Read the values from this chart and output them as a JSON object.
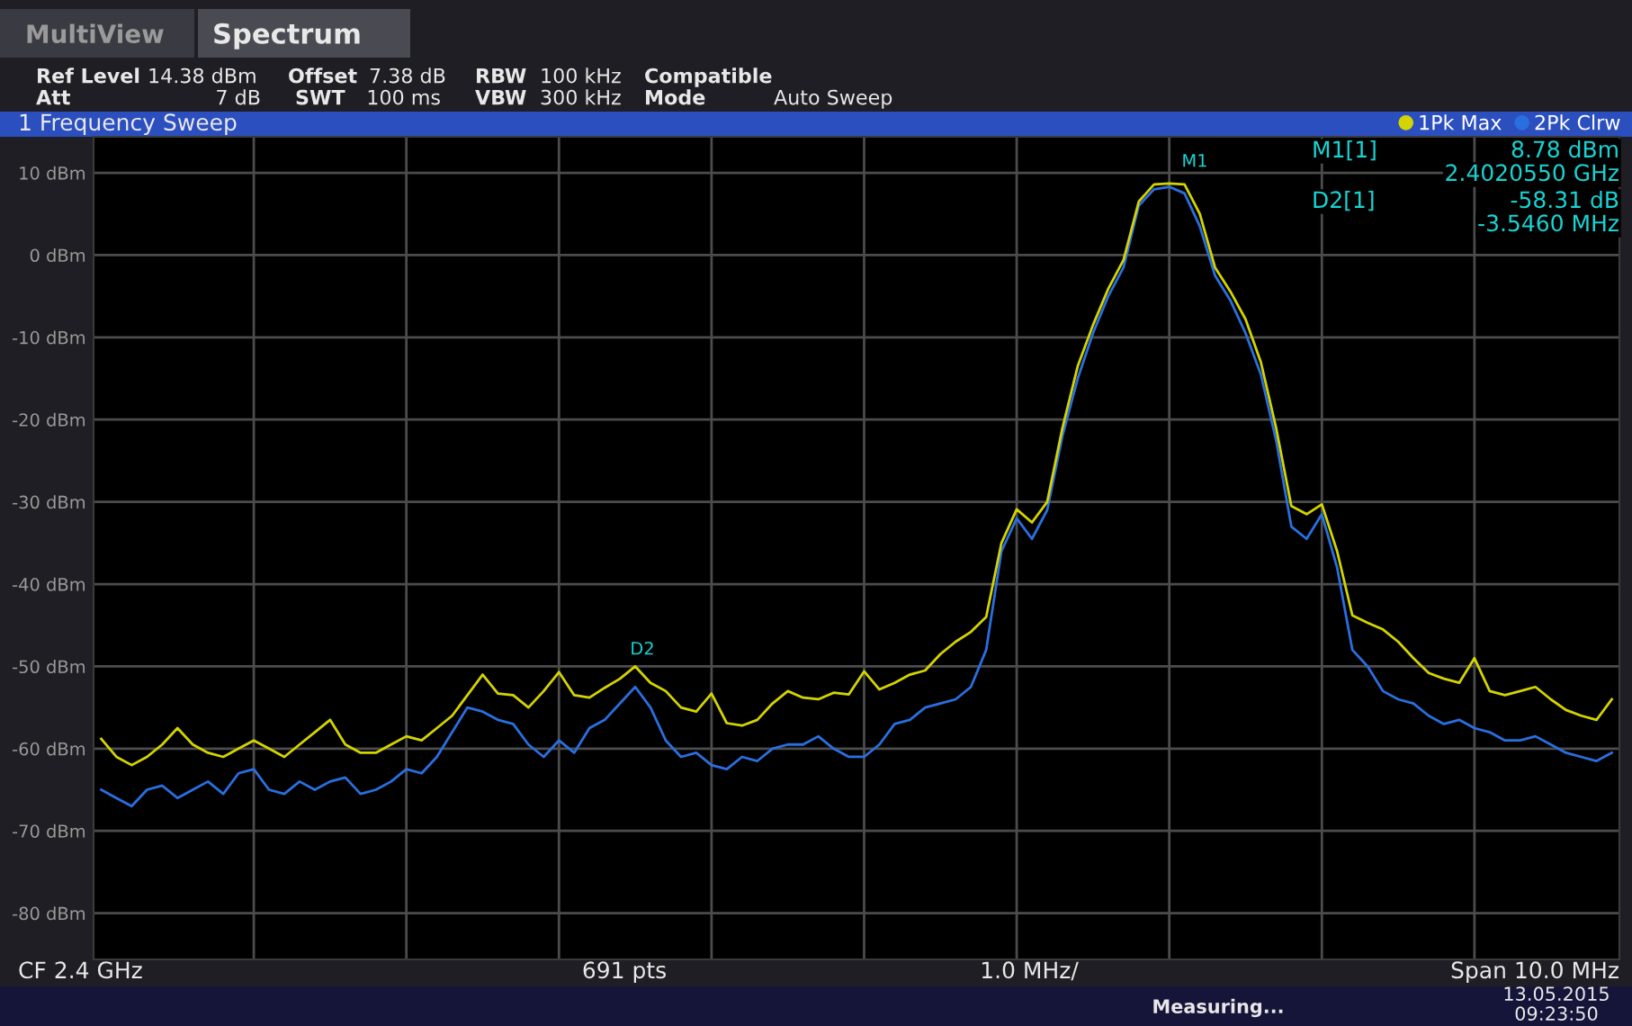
{
  "chart_data": {
    "type": "line",
    "categories": [
      null,
      null,
      null,
      null,
      null,
      null,
      null,
      null,
      null,
      null,
      null,
      null,
      null,
      null,
      null,
      null,
      null,
      null,
      null,
      null,
      null,
      null,
      null,
      null,
      null,
      null,
      null,
      null,
      null,
      null,
      null,
      null,
      null,
      null,
      null,
      null,
      null,
      null,
      null,
      null,
      null,
      null,
      null,
      null,
      null,
      null,
      null,
      null,
      null,
      null,
      null,
      null,
      null,
      null,
      null,
      null,
      null,
      null,
      null,
      null,
      null,
      null,
      null,
      null,
      null,
      null,
      null,
      null,
      null,
      null,
      null,
      null,
      null,
      null,
      null,
      null,
      null,
      null,
      null,
      null,
      null,
      null,
      null,
      null,
      null,
      null,
      null,
      null,
      null,
      null,
      null,
      null,
      null,
      null,
      null,
      null,
      null,
      null,
      null,
      null
    ],
    "series": [
      {
        "name": "1Pk Max",
        "color": "#d4d400",
        "values": [
          -58.8,
          -61,
          -62,
          -61,
          -59.5,
          -57.5,
          -59.5,
          -60.5,
          -61,
          -60,
          -59,
          -60,
          -61,
          -59.5,
          -58,
          -56.5,
          -59.5,
          -60.5,
          -60.5,
          -59.5,
          -58.5,
          -59,
          -57.5,
          -56,
          -53.5,
          -51,
          -53.3,
          -53.5,
          -55,
          -53,
          -50.7,
          -53.5,
          -53.8,
          -52.6,
          -51.5,
          -50,
          -52,
          -53,
          -55,
          -55.5,
          -53.3,
          -56.9,
          -57.2,
          -56.5,
          -54.5,
          -53,
          -53.8,
          -54,
          -53.2,
          -53.4,
          -50.6,
          -52.8,
          -52,
          -51,
          -50.5,
          -48.5,
          -47,
          -45.8,
          -44,
          -35,
          -30.9,
          -32.5,
          -30,
          -21,
          -13.5,
          -8.5,
          -4.1,
          -0.6,
          6.5,
          8.6,
          8.7,
          8.6,
          5,
          -1.5,
          -4.4,
          -7.8,
          -13,
          -21,
          -30.5,
          -31.5,
          -30.3,
          -36,
          -43.8,
          -44.7,
          -45.5,
          -47,
          -49,
          -50.8,
          -51.5,
          -52,
          -49,
          -53,
          -53.5,
          -53,
          -52.5,
          -54,
          -55.3,
          -56,
          -56.5,
          -54
        ]
      },
      {
        "name": "2Pk Clrw",
        "color": "#2a6fe0",
        "values": [
          -65,
          -66,
          -67,
          -65,
          -64.5,
          -66,
          -65,
          -64,
          -65.5,
          -63,
          -62.5,
          -65,
          -65.5,
          -64,
          -65,
          -64,
          -63.5,
          -65.5,
          -65,
          -64,
          -62.5,
          -63,
          -61,
          -58,
          -55,
          -55.5,
          -56.5,
          -57,
          -59.5,
          -61,
          -59,
          -60.5,
          -57.5,
          -56.5,
          -54.5,
          -52.5,
          -55,
          -59,
          -61,
          -60.5,
          -62,
          -62.5,
          -61,
          -61.5,
          -60,
          -59.5,
          -59.5,
          -58.5,
          -60,
          -61,
          -61,
          -59.5,
          -57,
          -56.5,
          -55,
          -54.5,
          -54,
          -52.5,
          -48,
          -36,
          -32,
          -34.5,
          -31,
          -22,
          -15,
          -9.5,
          -5,
          -1.5,
          6,
          8,
          8.3,
          7.5,
          3.5,
          -2.5,
          -5.5,
          -9.5,
          -14.5,
          -22.5,
          -33,
          -34.5,
          -31.5,
          -38,
          -48,
          -50,
          -53,
          -54,
          -54.5,
          -56,
          -57,
          -56.5,
          -57.5,
          -58,
          -59,
          -59,
          -58.5,
          -59.5,
          -60.5,
          -61,
          -61.5,
          -60.5
        ]
      }
    ],
    "ylim": [
      -85.62,
      14.38
    ],
    "yticks": [
      {
        "value": 10,
        "label": "10 dBm"
      },
      {
        "value": 0,
        "label": "0 dBm"
      },
      {
        "value": -10,
        "label": "-10 dBm"
      },
      {
        "value": -20,
        "label": "-20 dBm"
      },
      {
        "value": -30,
        "label": "-30 dBm"
      },
      {
        "value": -40,
        "label": "-40 dBm"
      },
      {
        "value": -50,
        "label": "-50 dBm"
      },
      {
        "value": -60,
        "label": "-60 dBm"
      },
      {
        "value": -70,
        "label": "-70 dBm"
      },
      {
        "value": -80,
        "label": "-80 dBm"
      }
    ],
    "tick_labels": "y",
    "grid": true,
    "legend": "top right",
    "annotations": [
      "MultiView",
      "Spectrum",
      "Ref Level",
      "14.38 dBm",
      "Offset",
      "7.38 dB",
      "RBW",
      "100 kHz",
      "Compatible",
      "Att",
      "7 dB",
      "SWT",
      "100 ms",
      "VBW",
      "300 kHz",
      "Mode",
      "Auto Sweep",
      "1 Frequency Sweep",
      "M1[1]",
      "8.78 dBm",
      "2.4020550 GHz",
      "D2[1]",
      "-58.31 dB",
      "-3.5460 MHz",
      "CF 2.4 GHz",
      "691 pts",
      "1.0 MHz/",
      "Span 10.0 MHz",
      "Measuring...",
      "13.05.2015",
      "09:23:50",
      "M1",
      "D2"
    ]
  }
}
